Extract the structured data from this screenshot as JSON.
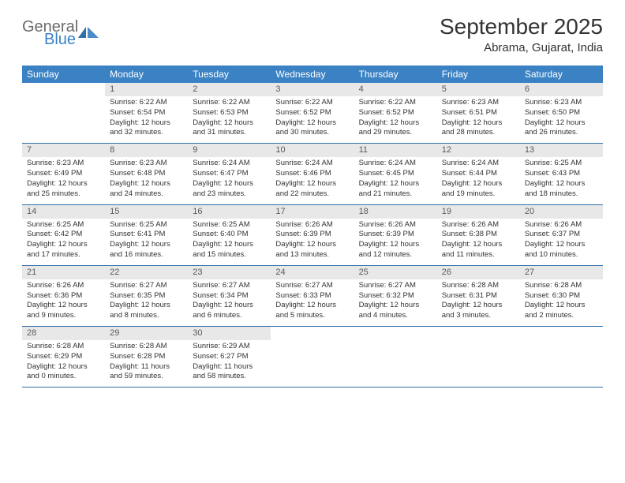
{
  "brand": {
    "general": "General",
    "blue": "Blue"
  },
  "title": "September 2025",
  "location": "Abrama, Gujarat, India",
  "colors": {
    "header_bg": "#3b82c4",
    "header_text": "#ffffff",
    "daynum_bg": "#e8e8e8",
    "daynum_text": "#5a5a5a",
    "row_border": "#2f6fa8",
    "body_text": "#333333",
    "page_bg": "#ffffff"
  },
  "day_headers": [
    "Sunday",
    "Monday",
    "Tuesday",
    "Wednesday",
    "Thursday",
    "Friday",
    "Saturday"
  ],
  "weeks": [
    [
      {
        "num": "",
        "sunrise": "",
        "sunset": "",
        "daylight": ""
      },
      {
        "num": "1",
        "sunrise": "Sunrise: 6:22 AM",
        "sunset": "Sunset: 6:54 PM",
        "daylight": "Daylight: 12 hours and 32 minutes."
      },
      {
        "num": "2",
        "sunrise": "Sunrise: 6:22 AM",
        "sunset": "Sunset: 6:53 PM",
        "daylight": "Daylight: 12 hours and 31 minutes."
      },
      {
        "num": "3",
        "sunrise": "Sunrise: 6:22 AM",
        "sunset": "Sunset: 6:52 PM",
        "daylight": "Daylight: 12 hours and 30 minutes."
      },
      {
        "num": "4",
        "sunrise": "Sunrise: 6:22 AM",
        "sunset": "Sunset: 6:52 PM",
        "daylight": "Daylight: 12 hours and 29 minutes."
      },
      {
        "num": "5",
        "sunrise": "Sunrise: 6:23 AM",
        "sunset": "Sunset: 6:51 PM",
        "daylight": "Daylight: 12 hours and 28 minutes."
      },
      {
        "num": "6",
        "sunrise": "Sunrise: 6:23 AM",
        "sunset": "Sunset: 6:50 PM",
        "daylight": "Daylight: 12 hours and 26 minutes."
      }
    ],
    [
      {
        "num": "7",
        "sunrise": "Sunrise: 6:23 AM",
        "sunset": "Sunset: 6:49 PM",
        "daylight": "Daylight: 12 hours and 25 minutes."
      },
      {
        "num": "8",
        "sunrise": "Sunrise: 6:23 AM",
        "sunset": "Sunset: 6:48 PM",
        "daylight": "Daylight: 12 hours and 24 minutes."
      },
      {
        "num": "9",
        "sunrise": "Sunrise: 6:24 AM",
        "sunset": "Sunset: 6:47 PM",
        "daylight": "Daylight: 12 hours and 23 minutes."
      },
      {
        "num": "10",
        "sunrise": "Sunrise: 6:24 AM",
        "sunset": "Sunset: 6:46 PM",
        "daylight": "Daylight: 12 hours and 22 minutes."
      },
      {
        "num": "11",
        "sunrise": "Sunrise: 6:24 AM",
        "sunset": "Sunset: 6:45 PM",
        "daylight": "Daylight: 12 hours and 21 minutes."
      },
      {
        "num": "12",
        "sunrise": "Sunrise: 6:24 AM",
        "sunset": "Sunset: 6:44 PM",
        "daylight": "Daylight: 12 hours and 19 minutes."
      },
      {
        "num": "13",
        "sunrise": "Sunrise: 6:25 AM",
        "sunset": "Sunset: 6:43 PM",
        "daylight": "Daylight: 12 hours and 18 minutes."
      }
    ],
    [
      {
        "num": "14",
        "sunrise": "Sunrise: 6:25 AM",
        "sunset": "Sunset: 6:42 PM",
        "daylight": "Daylight: 12 hours and 17 minutes."
      },
      {
        "num": "15",
        "sunrise": "Sunrise: 6:25 AM",
        "sunset": "Sunset: 6:41 PM",
        "daylight": "Daylight: 12 hours and 16 minutes."
      },
      {
        "num": "16",
        "sunrise": "Sunrise: 6:25 AM",
        "sunset": "Sunset: 6:40 PM",
        "daylight": "Daylight: 12 hours and 15 minutes."
      },
      {
        "num": "17",
        "sunrise": "Sunrise: 6:26 AM",
        "sunset": "Sunset: 6:39 PM",
        "daylight": "Daylight: 12 hours and 13 minutes."
      },
      {
        "num": "18",
        "sunrise": "Sunrise: 6:26 AM",
        "sunset": "Sunset: 6:39 PM",
        "daylight": "Daylight: 12 hours and 12 minutes."
      },
      {
        "num": "19",
        "sunrise": "Sunrise: 6:26 AM",
        "sunset": "Sunset: 6:38 PM",
        "daylight": "Daylight: 12 hours and 11 minutes."
      },
      {
        "num": "20",
        "sunrise": "Sunrise: 6:26 AM",
        "sunset": "Sunset: 6:37 PM",
        "daylight": "Daylight: 12 hours and 10 minutes."
      }
    ],
    [
      {
        "num": "21",
        "sunrise": "Sunrise: 6:26 AM",
        "sunset": "Sunset: 6:36 PM",
        "daylight": "Daylight: 12 hours and 9 minutes."
      },
      {
        "num": "22",
        "sunrise": "Sunrise: 6:27 AM",
        "sunset": "Sunset: 6:35 PM",
        "daylight": "Daylight: 12 hours and 8 minutes."
      },
      {
        "num": "23",
        "sunrise": "Sunrise: 6:27 AM",
        "sunset": "Sunset: 6:34 PM",
        "daylight": "Daylight: 12 hours and 6 minutes."
      },
      {
        "num": "24",
        "sunrise": "Sunrise: 6:27 AM",
        "sunset": "Sunset: 6:33 PM",
        "daylight": "Daylight: 12 hours and 5 minutes."
      },
      {
        "num": "25",
        "sunrise": "Sunrise: 6:27 AM",
        "sunset": "Sunset: 6:32 PM",
        "daylight": "Daylight: 12 hours and 4 minutes."
      },
      {
        "num": "26",
        "sunrise": "Sunrise: 6:28 AM",
        "sunset": "Sunset: 6:31 PM",
        "daylight": "Daylight: 12 hours and 3 minutes."
      },
      {
        "num": "27",
        "sunrise": "Sunrise: 6:28 AM",
        "sunset": "Sunset: 6:30 PM",
        "daylight": "Daylight: 12 hours and 2 minutes."
      }
    ],
    [
      {
        "num": "28",
        "sunrise": "Sunrise: 6:28 AM",
        "sunset": "Sunset: 6:29 PM",
        "daylight": "Daylight: 12 hours and 0 minutes."
      },
      {
        "num": "29",
        "sunrise": "Sunrise: 6:28 AM",
        "sunset": "Sunset: 6:28 PM",
        "daylight": "Daylight: 11 hours and 59 minutes."
      },
      {
        "num": "30",
        "sunrise": "Sunrise: 6:29 AM",
        "sunset": "Sunset: 6:27 PM",
        "daylight": "Daylight: 11 hours and 58 minutes."
      },
      {
        "num": "",
        "sunrise": "",
        "sunset": "",
        "daylight": ""
      },
      {
        "num": "",
        "sunrise": "",
        "sunset": "",
        "daylight": ""
      },
      {
        "num": "",
        "sunrise": "",
        "sunset": "",
        "daylight": ""
      },
      {
        "num": "",
        "sunrise": "",
        "sunset": "",
        "daylight": ""
      }
    ]
  ]
}
